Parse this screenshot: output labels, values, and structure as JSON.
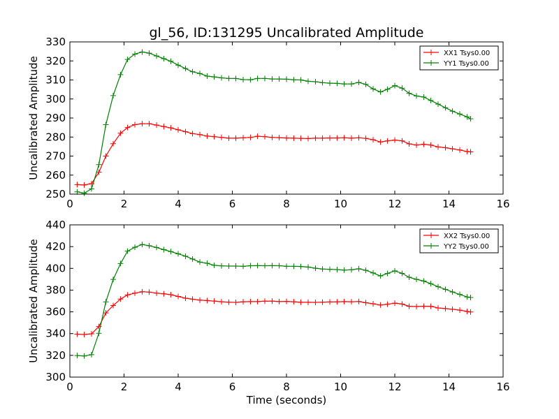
{
  "title": "gl_56, ID:131295 Uncalibrated Amplitude",
  "chart_data": [
    {
      "type": "line",
      "title": "gl_56, ID:131295 Uncalibrated Amplitude",
      "xlabel": "",
      "ylabel": "Uncalibrated Amplitude",
      "xlim": [
        0,
        16
      ],
      "ylim": [
        250,
        330
      ],
      "xticks": [
        "0",
        "2",
        "4",
        "6",
        "8",
        "10",
        "12",
        "14",
        "16"
      ],
      "yticks": [
        "250",
        "260",
        "270",
        "280",
        "290",
        "300",
        "310",
        "320",
        "330"
      ],
      "grid": false,
      "legend_position": "top-right",
      "x": [
        0.27,
        0.53,
        0.8,
        1.07,
        1.33,
        1.6,
        1.87,
        2.13,
        2.4,
        2.67,
        2.93,
        3.2,
        3.47,
        3.73,
        4.0,
        4.27,
        4.53,
        4.8,
        5.07,
        5.33,
        5.6,
        5.87,
        6.13,
        6.4,
        6.67,
        6.93,
        7.2,
        7.47,
        7.73,
        8.0,
        8.27,
        8.53,
        8.8,
        9.07,
        9.33,
        9.6,
        9.87,
        10.13,
        10.4,
        10.67,
        10.93,
        11.2,
        11.47,
        11.73,
        12.0,
        12.27,
        12.53,
        12.8,
        13.07,
        13.33,
        13.6,
        13.87,
        14.13,
        14.4,
        14.67,
        14.8
      ],
      "series": [
        {
          "name": "XX1 Tsys0.00",
          "color": "#ff0000",
          "values": [
            255,
            254.8,
            255.5,
            261.5,
            270,
            276.5,
            282,
            285,
            286.5,
            287,
            287,
            286.3,
            285.5,
            284.8,
            283.8,
            282.8,
            281.8,
            281.3,
            280.5,
            280.2,
            279.8,
            279.4,
            279.4,
            279.6,
            279.8,
            280.4,
            280.2,
            279.8,
            279.7,
            279.5,
            279.4,
            279.3,
            279.2,
            279.4,
            279.4,
            279.5,
            279.5,
            279.6,
            279.4,
            279.6,
            279.3,
            278.6,
            277.4,
            278,
            278.4,
            278,
            276.4,
            275.8,
            276.2,
            275.8,
            274.8,
            274.4,
            273.8,
            273.2,
            272.4,
            272.2
          ]
        },
        {
          "name": "YY1 Tsys0.00",
          "color": "#008000",
          "values": [
            251.2,
            250.5,
            252.8,
            265.5,
            286.5,
            301.8,
            312.8,
            320.8,
            323.6,
            324.7,
            324.1,
            322.6,
            321.2,
            319.8,
            317.8,
            316,
            314.3,
            313.4,
            312,
            311.6,
            311.1,
            310.8,
            310.8,
            310.2,
            310.1,
            310.8,
            310.8,
            310.5,
            310.5,
            310.4,
            310.1,
            310,
            309.3,
            309.1,
            308.6,
            308.3,
            308.2,
            307.9,
            307.9,
            308.7,
            307.7,
            305.3,
            303.7,
            305.1,
            307,
            305.7,
            303,
            301.6,
            301,
            299.2,
            297.3,
            295.4,
            293.6,
            292.1,
            290.6,
            289.6
          ]
        }
      ]
    },
    {
      "type": "line",
      "title": "",
      "xlabel": "Time (seconds)",
      "ylabel": "Uncalibrated Amplitude",
      "xlim": [
        0,
        16
      ],
      "ylim": [
        300,
        440
      ],
      "xticks": [
        "0",
        "2",
        "4",
        "6",
        "8",
        "10",
        "12",
        "14",
        "16"
      ],
      "yticks": [
        "300",
        "320",
        "340",
        "360",
        "380",
        "400",
        "420",
        "440"
      ],
      "grid": false,
      "legend_position": "top-right",
      "x": [
        0.27,
        0.53,
        0.8,
        1.07,
        1.33,
        1.6,
        1.87,
        2.13,
        2.4,
        2.67,
        2.93,
        3.2,
        3.47,
        3.73,
        4.0,
        4.27,
        4.53,
        4.8,
        5.07,
        5.33,
        5.6,
        5.87,
        6.13,
        6.4,
        6.67,
        6.93,
        7.2,
        7.47,
        7.73,
        8.0,
        8.27,
        8.53,
        8.8,
        9.07,
        9.33,
        9.6,
        9.87,
        10.13,
        10.4,
        10.67,
        10.93,
        11.2,
        11.47,
        11.73,
        12.0,
        12.27,
        12.53,
        12.8,
        13.07,
        13.33,
        13.6,
        13.87,
        14.13,
        14.4,
        14.67,
        14.8
      ],
      "series": [
        {
          "name": "XX2 Tsys0.00",
          "color": "#ff0000",
          "values": [
            339.5,
            339.2,
            339.8,
            346.5,
            359,
            365.8,
            371.8,
            375.6,
            377.2,
            378.5,
            378.2,
            377.2,
            376.6,
            375.8,
            374.2,
            372.6,
            371.7,
            370.8,
            370.4,
            369.9,
            369.3,
            368.9,
            368.7,
            369.3,
            369.4,
            369.4,
            369.8,
            369.9,
            369.4,
            369.6,
            369.3,
            368.8,
            368.8,
            368.7,
            368.9,
            369.1,
            369.2,
            369.4,
            369.3,
            369.5,
            368.4,
            367.4,
            366.3,
            367,
            368,
            367.2,
            365.1,
            364.9,
            365.2,
            365.1,
            363.6,
            363,
            362.4,
            361.6,
            360.4,
            359.9
          ]
        },
        {
          "name": "YY2 Tsys0.00",
          "color": "#008000",
          "values": [
            319.8,
            319.4,
            320.6,
            340.3,
            369.2,
            389.8,
            404.4,
            415.8,
            419.4,
            421.9,
            420.8,
            419.2,
            417.2,
            415.4,
            413.4,
            411.2,
            408.6,
            405.8,
            404.7,
            402.8,
            402.3,
            402.1,
            402.1,
            401.9,
            402.4,
            402.5,
            402.4,
            402.5,
            402.4,
            401.9,
            401.9,
            401.7,
            401.2,
            400.1,
            399.4,
            399.1,
            398.9,
            398.4,
            398.7,
            399.6,
            398.2,
            395.8,
            393,
            395.3,
            397.7,
            395.4,
            391.8,
            389.9,
            388.3,
            385.9,
            383.1,
            380.7,
            378.3,
            376,
            373.7,
            373.2
          ]
        }
      ]
    }
  ]
}
